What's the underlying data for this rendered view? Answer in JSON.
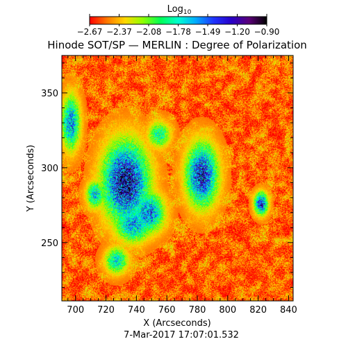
{
  "chart_data": {
    "type": "heatmap",
    "title": "Hinode SOT/SP — MERLIN : Degree of Polarization",
    "xlabel": "X (Arcseconds)",
    "ylabel": "Y (Arcseconds)",
    "timestamp": "7-Mar-2017 17:07:01.532",
    "xlim": [
      691,
      843
    ],
    "ylim": [
      211,
      375
    ],
    "x_ticks": [
      700,
      720,
      740,
      760,
      780,
      800,
      820,
      840
    ],
    "y_ticks": [
      250,
      300,
      350
    ],
    "colorbar": {
      "label_base": "Log",
      "label_sub": "10",
      "range": [
        -2.67,
        -0.9
      ],
      "tick_labels": [
        "−2.67",
        "−2.37",
        "−2.08",
        "−1.78",
        "−1.49",
        "−1.20",
        "−0.90"
      ],
      "colormap": [
        "#ff0000",
        "#ff7a00",
        "#ffd700",
        "#8fff00",
        "#00ff55",
        "#00ffd0",
        "#00aaff",
        "#1f34ff",
        "#2800c8",
        "#5a0078",
        "#000000"
      ]
    },
    "background_value": -2.52,
    "polarized_regions": [
      {
        "x": 733,
        "y": 290,
        "sx": 10,
        "sy": 18,
        "peak": -1.15
      },
      {
        "x": 748,
        "y": 270,
        "sx": 7,
        "sy": 9,
        "peak": -1.5
      },
      {
        "x": 783,
        "y": 295,
        "sx": 7,
        "sy": 14,
        "peak": -1.3
      },
      {
        "x": 822,
        "y": 276,
        "sx": 3,
        "sy": 5,
        "peak": -1.35
      },
      {
        "x": 697,
        "y": 330,
        "sx": 4,
        "sy": 12,
        "peak": -1.55
      },
      {
        "x": 713,
        "y": 282,
        "sx": 4,
        "sy": 6,
        "peak": -1.7
      },
      {
        "x": 727,
        "y": 238,
        "sx": 5,
        "sy": 6,
        "peak": -1.75
      },
      {
        "x": 755,
        "y": 322,
        "sx": 5,
        "sy": 6,
        "peak": -1.85
      },
      {
        "x": 738,
        "y": 262,
        "sx": 8,
        "sy": 8,
        "peak": -1.6
      }
    ]
  }
}
